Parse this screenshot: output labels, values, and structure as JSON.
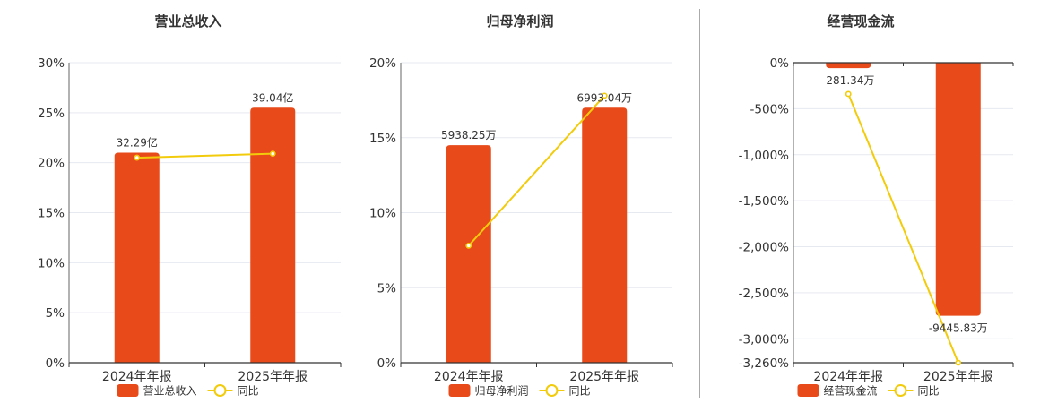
{
  "colors": {
    "bar": "#E84A1A",
    "line": "#F2CC0C",
    "grid": "#E6E9F0",
    "axis": "#333333",
    "text": "#333333"
  },
  "chart_data": [
    {
      "type": "bar",
      "title": "营业总收入",
      "categories": [
        "2024年年报",
        "2025年年报"
      ],
      "series": [
        {
          "name": "营业总收入",
          "type": "bar",
          "values": [
            21.0,
            25.5
          ],
          "labels": [
            "32.29亿",
            "39.04亿"
          ]
        },
        {
          "name": "同比",
          "type": "line",
          "values": [
            20.5,
            20.9
          ]
        }
      ],
      "ylim": [
        0,
        30
      ],
      "yticks": [
        "0%",
        "5%",
        "10%",
        "15%",
        "20%",
        "25%",
        "30%"
      ],
      "grid": true,
      "legend": "bottom"
    },
    {
      "type": "bar",
      "title": "归母净利润",
      "categories": [
        "2024年年报",
        "2025年年报"
      ],
      "series": [
        {
          "name": "归母净利润",
          "type": "bar",
          "values": [
            14.5,
            17.0
          ],
          "labels": [
            "5938.25万",
            "6993.04万"
          ]
        },
        {
          "name": "同比",
          "type": "line",
          "values": [
            7.8,
            17.8
          ]
        }
      ],
      "ylim": [
        0,
        20
      ],
      "yticks": [
        "0%",
        "5%",
        "10%",
        "15%",
        "20%"
      ],
      "grid": true,
      "legend": "bottom"
    },
    {
      "type": "bar",
      "title": "经营现金流",
      "categories": [
        "2024年年报",
        "2025年年报"
      ],
      "series": [
        {
          "name": "经营现金流",
          "type": "bar",
          "values": [
            -60,
            -2750
          ],
          "labels": [
            "-281.34万",
            "-9445.83万"
          ]
        },
        {
          "name": "同比",
          "type": "line",
          "values": [
            -340,
            -3260
          ]
        }
      ],
      "ylim": [
        -3260,
        0
      ],
      "yticks": [
        "0%",
        "-500%",
        "-1,000%",
        "-1,500%",
        "-2,000%",
        "-2,500%",
        "-3,000%",
        "-3,260%"
      ],
      "ytick_values": [
        0,
        -500,
        -1000,
        -1500,
        -2000,
        -2500,
        -3000,
        -3260
      ],
      "grid": true,
      "legend": "bottom"
    }
  ]
}
